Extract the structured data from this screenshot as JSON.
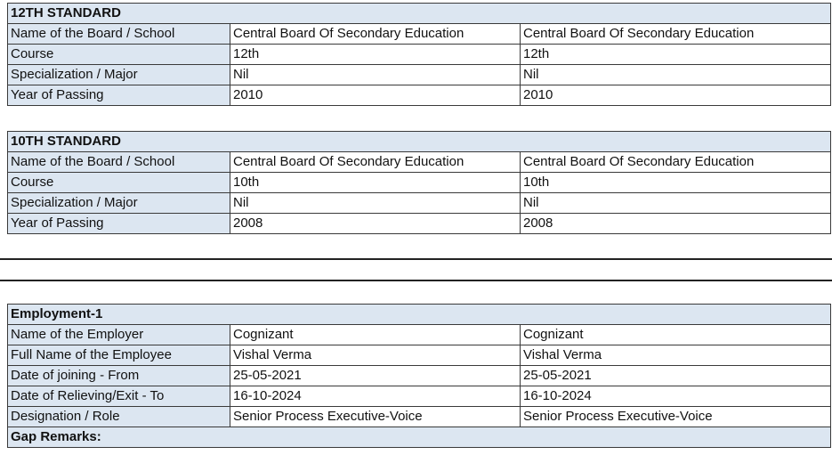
{
  "sections": [
    {
      "title": "12TH STANDARD",
      "rows": [
        {
          "label": "Name of the Board / School",
          "v1": "Central Board Of Secondary Education",
          "v2": "Central Board Of Secondary Education"
        },
        {
          "label": "Course",
          "v1": "12th",
          "v2": "12th"
        },
        {
          "label": "Specialization / Major",
          "v1": "Nil",
          "v2": "Nil"
        },
        {
          "label": "Year of Passing",
          "v1": "2010",
          "v2": "2010"
        }
      ]
    },
    {
      "title": "10TH STANDARD",
      "rows": [
        {
          "label": "Name of the Board / School",
          "v1": "Central Board Of Secondary Education",
          "v2": "Central Board Of Secondary Education"
        },
        {
          "label": "Course",
          "v1": "10th",
          "v2": "10th"
        },
        {
          "label": "Specialization / Major",
          "v1": "Nil",
          "v2": "Nil"
        },
        {
          "label": "Year of Passing",
          "v1": "2008",
          "v2": "2008"
        }
      ]
    },
    {
      "title": "Employment-1",
      "rows": [
        {
          "label": "Name of the Employer",
          "v1": "Cognizant",
          "v2": "Cognizant"
        },
        {
          "label": "Full Name of the Employee",
          "v1": "Vishal Verma",
          "v2": "Vishal Verma"
        },
        {
          "label": "Date of joining - From",
          "v1": "25-05-2021",
          "v2": "25-05-2021"
        },
        {
          "label": "Date of Relieving/Exit - To",
          "v1": "16-10-2024",
          "v2": "16-10-2024"
        },
        {
          "label": "Designation / Role",
          "v1": "Senior Process Executive-Voice",
          "v2": "Senior Process Executive-Voice"
        }
      ],
      "footer": "Gap Remarks:"
    }
  ]
}
